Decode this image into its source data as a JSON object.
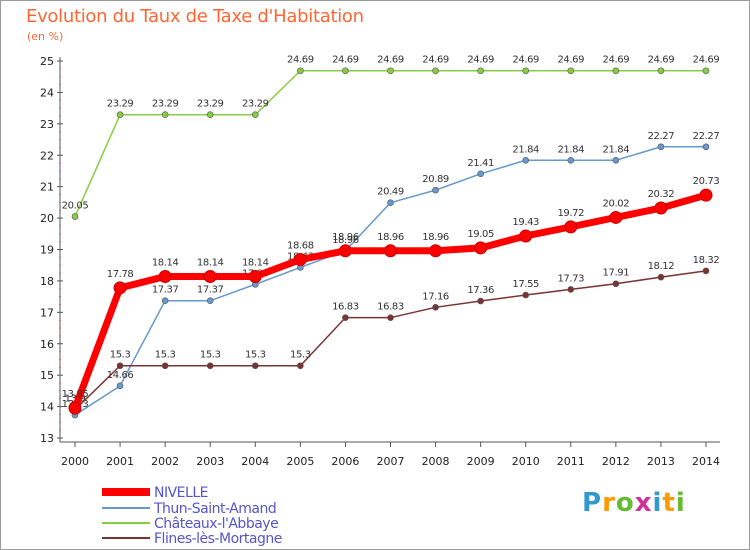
{
  "header": {
    "title": "Evolution du Taux de Taxe d'Habitation",
    "subtitle": "(en %)"
  },
  "logo": {
    "text": "Proxiti"
  },
  "chart_data": {
    "type": "line",
    "x": [
      "2000",
      "2001",
      "2002",
      "2003",
      "2004",
      "2005",
      "2006",
      "2007",
      "2008",
      "2009",
      "2010",
      "2011",
      "2012",
      "2013",
      "2014"
    ],
    "ylim": [
      13,
      25
    ],
    "yticks": [
      13,
      14,
      15,
      16,
      17,
      18,
      19,
      20,
      21,
      22,
      23,
      24,
      25
    ],
    "grid": "none",
    "legend_position": "bottom-left",
    "series": [
      {
        "name": "Châteaux-l'Abbaye",
        "color": "#88cc44",
        "values": [
          20.05,
          23.29,
          23.29,
          23.29,
          23.29,
          24.69,
          24.69,
          24.69,
          24.69,
          24.69,
          24.69,
          24.69,
          24.69,
          24.69,
          24.69
        ],
        "labels": [
          "20.05",
          "23.29",
          "23.29",
          "23.29",
          "23.29",
          "24.69",
          "24.69",
          "24.69",
          "24.69",
          "24.69",
          "24.69",
          "24.69",
          "24.69",
          "24.69",
          "24.69"
        ]
      },
      {
        "name": "Thun-Saint-Amand",
        "color": "#6699cc",
        "values": [
          13.73,
          14.66,
          17.37,
          17.37,
          17.89,
          18.43,
          18.96,
          20.49,
          20.89,
          21.41,
          21.84,
          21.84,
          21.84,
          22.27,
          22.27
        ],
        "labels": [
          "13.73",
          "14.66",
          "17.37",
          "17.37",
          "17.89",
          "18.43",
          "18.96",
          "20.49",
          "20.89",
          "21.41",
          "21.84",
          "21.84",
          "21.84",
          "22.27",
          "22.27"
        ]
      },
      {
        "name": "Flines-lès-Mortagne",
        "color": "#7a3333",
        "values": [
          13.9,
          15.3,
          15.3,
          15.3,
          15.3,
          15.3,
          16.83,
          16.83,
          17.16,
          17.36,
          17.55,
          17.73,
          17.91,
          18.12,
          18.32
        ],
        "labels": [
          "13.9",
          "15.3",
          "15.3",
          "15.3",
          "15.3",
          "15.3",
          "16.83",
          "16.83",
          "17.16",
          "17.36",
          "17.55",
          "17.73",
          "17.91",
          "18.12",
          "18.32"
        ]
      },
      {
        "name": "NIVELLE",
        "color": "#ff0000",
        "values": [
          13.95,
          17.78,
          18.14,
          18.14,
          18.14,
          18.68,
          18.96,
          18.96,
          18.96,
          19.05,
          19.43,
          19.72,
          20.02,
          20.32,
          20.73
        ],
        "labels": [
          "13.95",
          "17.78",
          "18.14",
          "18.14",
          "18.14",
          "18.68",
          "18.96",
          "18.96",
          "18.96",
          "19.05",
          "19.43",
          "19.72",
          "20.02",
          "20.32",
          "20.73"
        ]
      }
    ],
    "legend": [
      "NIVELLE",
      "Thun-Saint-Amand",
      "Châteaux-l'Abbaye",
      "Flines-lès-Mortagne"
    ]
  }
}
